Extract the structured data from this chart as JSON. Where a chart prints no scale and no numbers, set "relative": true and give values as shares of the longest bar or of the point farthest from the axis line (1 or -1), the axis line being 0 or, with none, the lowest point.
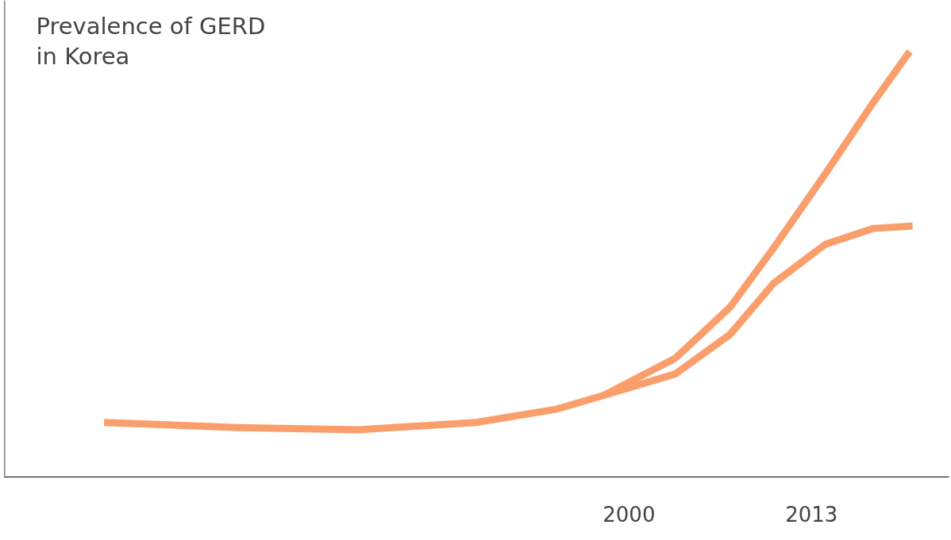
{
  "chart_data": {
    "type": "line",
    "ylabel": "Prevalence of GERD\nin Korea",
    "relative": true,
    "xlim": [
      1955.5,
      2022.8
    ],
    "xticks": [
      2000,
      2013
    ],
    "grid": false,
    "line_style": "solid",
    "series": [
      {
        "color": "#fa9e6c",
        "x": [
          1962.6,
          1972.2,
          1980.7,
          1989.1,
          1994.8,
          1998.2,
          2003.3,
          2007.2,
          2010.3,
          2014.0,
          2017.4,
          2020.0
        ],
        "values": [
          0.128,
          0.116,
          0.111,
          0.128,
          0.159,
          0.192,
          0.279,
          0.399,
          0.538,
          0.713,
          0.88,
          1.0
        ]
      },
      {
        "color": "#fa9e6c",
        "x": [
          1998.2,
          2003.3,
          2007.2,
          2010.3,
          2014.0,
          2017.4,
          2020.2
        ],
        "values": [
          0.192,
          0.242,
          0.335,
          0.455,
          0.547,
          0.584,
          0.59
        ]
      }
    ]
  }
}
